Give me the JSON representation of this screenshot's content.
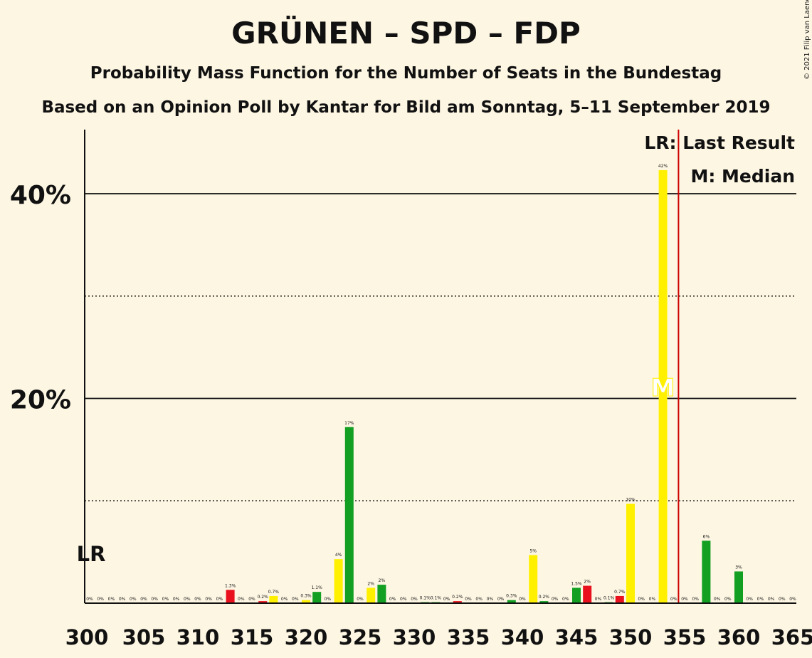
{
  "title": "GRÜNEN – SPD – FDP",
  "subtitle": "Probability Mass Function for the Number of Seats in the Bundestag",
  "source": "Based on an Opinion Poll by Kantar for Bild am Sonntag, 5–11 September 2019",
  "copyright": "© 2021 Filip van Laenen",
  "legend": {
    "last_result": "LR: Last Result",
    "median": "M: Median"
  },
  "markers": {
    "lr_text": "LR",
    "median_text": "M",
    "lr_line_seat": 354.5,
    "left_lr_seat": 300,
    "median_seat": 353
  },
  "colors": {
    "background": "#fdf6e3",
    "green": "#129f22",
    "red": "#e8111d",
    "yellow": "#fff000",
    "lr_line": "#cc0000",
    "axis": "#111111"
  },
  "chart_data": {
    "type": "bar",
    "xlim": [
      300,
      365
    ],
    "ylim": [
      0,
      45
    ],
    "xticks": [
      300,
      305,
      310,
      315,
      320,
      325,
      330,
      335,
      340,
      345,
      350,
      355,
      360,
      365
    ],
    "xtick_labels": [
      "300",
      "305",
      "310",
      "315",
      "320",
      "325",
      "330",
      "335",
      "340",
      "345",
      "350",
      "355",
      "360",
      "365"
    ],
    "y_major": [
      20,
      40
    ],
    "y_major_labels": [
      "20%",
      "40%"
    ],
    "y_minor": [
      10,
      30
    ],
    "bars": [
      {
        "seat": 300,
        "value": 0,
        "label": "0%",
        "color": "green"
      },
      {
        "seat": 301,
        "value": 0,
        "label": "0%",
        "color": "green"
      },
      {
        "seat": 302,
        "value": 0,
        "label": "0%",
        "color": "green"
      },
      {
        "seat": 303,
        "value": 0,
        "label": "0%",
        "color": "green"
      },
      {
        "seat": 304,
        "value": 0,
        "label": "0%",
        "color": "green"
      },
      {
        "seat": 305,
        "value": 0,
        "label": "0%",
        "color": "green"
      },
      {
        "seat": 306,
        "value": 0,
        "label": "0%",
        "color": "green"
      },
      {
        "seat": 307,
        "value": 0,
        "label": "0%",
        "color": "green"
      },
      {
        "seat": 308,
        "value": 0,
        "label": "0%",
        "color": "green"
      },
      {
        "seat": 309,
        "value": 0,
        "label": "0%",
        "color": "green"
      },
      {
        "seat": 310,
        "value": 0,
        "label": "0%",
        "color": "green"
      },
      {
        "seat": 311,
        "value": 0,
        "label": "0%",
        "color": "green"
      },
      {
        "seat": 312,
        "value": 0,
        "label": "0%",
        "color": "green"
      },
      {
        "seat": 313,
        "value": 1.3,
        "label": "1.3%",
        "color": "red"
      },
      {
        "seat": 314,
        "value": 0,
        "label": "0%",
        "color": "green"
      },
      {
        "seat": 315,
        "value": 0,
        "label": "0%",
        "color": "green"
      },
      {
        "seat": 316,
        "value": 0.2,
        "label": "0.2%",
        "color": "red"
      },
      {
        "seat": 317,
        "value": 0.7,
        "label": "0.7%",
        "color": "yellow"
      },
      {
        "seat": 318,
        "value": 0,
        "label": "0%",
        "color": "green"
      },
      {
        "seat": 319,
        "value": 0,
        "label": "0%",
        "color": "green"
      },
      {
        "seat": 320,
        "value": 0.3,
        "label": "0.3%",
        "color": "yellow"
      },
      {
        "seat": 321,
        "value": 1.1,
        "label": "1.1%",
        "color": "green"
      },
      {
        "seat": 322,
        "value": 0,
        "label": "0%",
        "color": "green"
      },
      {
        "seat": 323,
        "value": 4.3,
        "label": "4%",
        "color": "yellow"
      },
      {
        "seat": 324,
        "value": 17.2,
        "label": "17%",
        "color": "green"
      },
      {
        "seat": 325,
        "value": 0,
        "label": "0%",
        "color": "green"
      },
      {
        "seat": 326,
        "value": 1.5,
        "label": "2%",
        "color": "yellow"
      },
      {
        "seat": 327,
        "value": 1.8,
        "label": "2%",
        "color": "green"
      },
      {
        "seat": 328,
        "value": 0,
        "label": "0%",
        "color": "green"
      },
      {
        "seat": 329,
        "value": 0,
        "label": "0%",
        "color": "green"
      },
      {
        "seat": 330,
        "value": 0,
        "label": "0%",
        "color": "green"
      },
      {
        "seat": 331,
        "value": 0.1,
        "label": "0.1%",
        "color": "green"
      },
      {
        "seat": 332,
        "value": 0.1,
        "label": "0.1%",
        "color": "green"
      },
      {
        "seat": 333,
        "value": 0,
        "label": "0%",
        "color": "green"
      },
      {
        "seat": 334,
        "value": 0.2,
        "label": "0.2%",
        "color": "red"
      },
      {
        "seat": 335,
        "value": 0,
        "label": "0%",
        "color": "green"
      },
      {
        "seat": 336,
        "value": 0,
        "label": "0%",
        "color": "green"
      },
      {
        "seat": 337,
        "value": 0,
        "label": "0%",
        "color": "green"
      },
      {
        "seat": 338,
        "value": 0,
        "label": "0%",
        "color": "green"
      },
      {
        "seat": 339,
        "value": 0.3,
        "label": "0.3%",
        "color": "green"
      },
      {
        "seat": 340,
        "value": 0,
        "label": "0%",
        "color": "green"
      },
      {
        "seat": 341,
        "value": 4.7,
        "label": "5%",
        "color": "yellow"
      },
      {
        "seat": 342,
        "value": 0.2,
        "label": "0.2%",
        "color": "green"
      },
      {
        "seat": 343,
        "value": 0,
        "label": "0%",
        "color": "green"
      },
      {
        "seat": 344,
        "value": 0,
        "label": "0%",
        "color": "green"
      },
      {
        "seat": 345,
        "value": 1.5,
        "label": "1.5%",
        "color": "green"
      },
      {
        "seat": 346,
        "value": 1.7,
        "label": "2%",
        "color": "red"
      },
      {
        "seat": 347,
        "value": 0,
        "label": "0%",
        "color": "green"
      },
      {
        "seat": 348,
        "value": 0.1,
        "label": "0.1%",
        "color": "green"
      },
      {
        "seat": 349,
        "value": 0.7,
        "label": "0.7%",
        "color": "red"
      },
      {
        "seat": 350,
        "value": 9.7,
        "label": "10%",
        "color": "yellow"
      },
      {
        "seat": 351,
        "value": 0,
        "label": "0%",
        "color": "green"
      },
      {
        "seat": 352,
        "value": 0,
        "label": "0%",
        "color": "green"
      },
      {
        "seat": 353,
        "value": 42.3,
        "label": "42%",
        "color": "yellow"
      },
      {
        "seat": 354,
        "value": 0,
        "label": "0%",
        "color": "green"
      },
      {
        "seat": 355,
        "value": 0,
        "label": "0%",
        "color": "green"
      },
      {
        "seat": 356,
        "value": 0,
        "label": "0%",
        "color": "green"
      },
      {
        "seat": 357,
        "value": 6.1,
        "label": "6%",
        "color": "green"
      },
      {
        "seat": 358,
        "value": 0,
        "label": "0%",
        "color": "green"
      },
      {
        "seat": 359,
        "value": 0,
        "label": "0%",
        "color": "green"
      },
      {
        "seat": 360,
        "value": 3.1,
        "label": "3%",
        "color": "green"
      },
      {
        "seat": 361,
        "value": 0,
        "label": "0%",
        "color": "green"
      },
      {
        "seat": 362,
        "value": 0,
        "label": "0%",
        "color": "green"
      },
      {
        "seat": 363,
        "value": 0,
        "label": "0%",
        "color": "green"
      },
      {
        "seat": 364,
        "value": 0,
        "label": "0%",
        "color": "green"
      },
      {
        "seat": 365,
        "value": 0,
        "label": "0%",
        "color": "green"
      }
    ]
  }
}
